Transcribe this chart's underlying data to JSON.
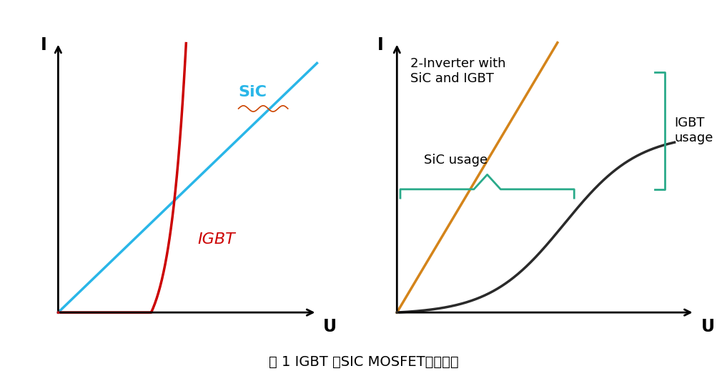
{
  "background_color": "#ffffff",
  "fig_width": 10.17,
  "fig_height": 5.26,
  "caption": "图 1 IGBT 和SIC MOSFET导通特性",
  "caption_fontsize": 14,
  "left_plot": {
    "SiC_color": "#29b6e8",
    "IGBT_color": "#cc0000",
    "label_I": "I",
    "label_U": "U",
    "label_SiC": "SiC",
    "label_IGBT": "IGBT",
    "label_SiC_color": "#29b6e8",
    "label_IGBT_color": "#cc0000"
  },
  "right_plot": {
    "orange_line_color": "#d4841a",
    "black_curve_color": "#2a2a2a",
    "teal_color": "#2aaa8a",
    "label_I": "I",
    "label_U": "U",
    "text_inverter": "2-Inverter with\nSiC and IGBT",
    "text_SiC_usage": "SiC usage",
    "text_IGBT_usage": "IGBT\nusage"
  }
}
